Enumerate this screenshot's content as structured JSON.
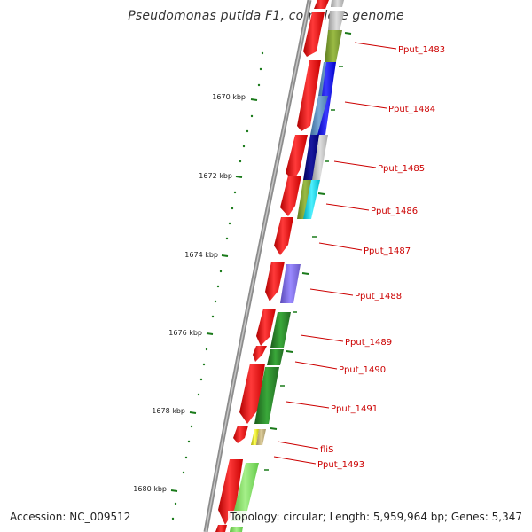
{
  "title": "Pseudomonas putida F1, complete genome",
  "accession": "Accession: NC_009512",
  "topology": "Topology: circular; Length: 5,959,964 bp; Genes: 5,347",
  "scale_labels": [
    "1670 kbp",
    "1672 kbp",
    "1674 kbp",
    "1676 kbp",
    "1678 kbp",
    "1680 kbp"
  ],
  "gene_labels": [
    "Pput_1483",
    "Pput_1484",
    "Pput_1485",
    "Pput_1486",
    "Pput_1487",
    "Pput_1488",
    "Pput_1489",
    "Pput_1490",
    "Pput_1491",
    "fliS",
    "Pput_1493"
  ],
  "colors": {
    "backbone": "#8c8c8c",
    "orf": "#ff0000",
    "scale": "#1a7a1a",
    "label": "#cc0000"
  }
}
